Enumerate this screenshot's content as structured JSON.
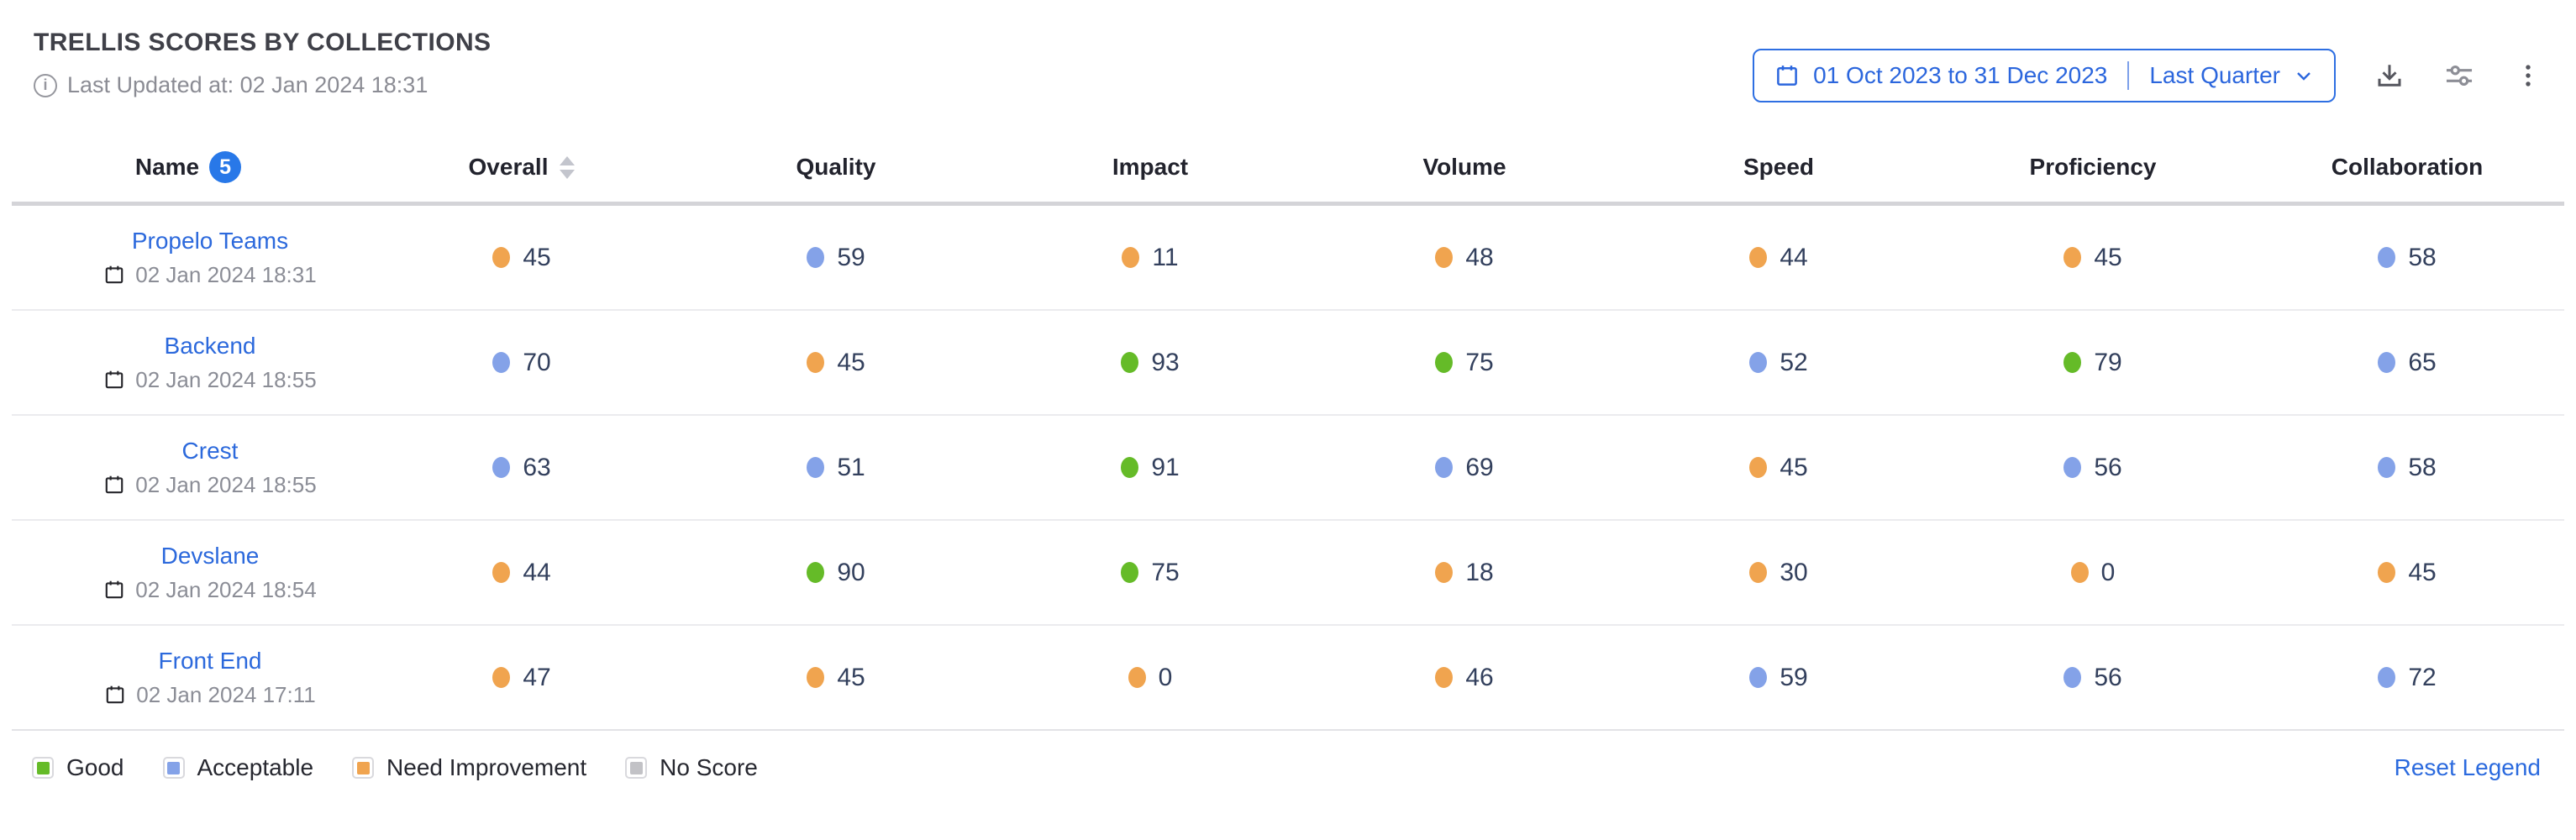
{
  "header": {
    "title": "TRELLIS SCORES BY COLLECTIONS",
    "last_updated": "Last Updated at: 02 Jan 2024 18:31"
  },
  "controls": {
    "date_range": "01 Oct 2023 to 31 Dec 2023",
    "date_preset": "Last Quarter",
    "icons": [
      "calendar-icon",
      "chevron-down-icon",
      "download-icon",
      "sliders-icon",
      "kebab-menu-icon"
    ]
  },
  "table": {
    "columns": [
      "Name",
      "Overall",
      "Quality",
      "Impact",
      "Volume",
      "Speed",
      "Proficiency",
      "Collaboration"
    ],
    "name_count_badge": "5",
    "rows": [
      {
        "name": "Propelo Teams",
        "updated": "02 Jan 2024 18:31",
        "scores": [
          {
            "value": 45,
            "status": "needImprovement"
          },
          {
            "value": 59,
            "status": "acceptable"
          },
          {
            "value": 11,
            "status": "needImprovement"
          },
          {
            "value": 48,
            "status": "needImprovement"
          },
          {
            "value": 44,
            "status": "needImprovement"
          },
          {
            "value": 45,
            "status": "needImprovement"
          },
          {
            "value": 58,
            "status": "acceptable"
          }
        ]
      },
      {
        "name": "Backend",
        "updated": "02 Jan 2024 18:55",
        "scores": [
          {
            "value": 70,
            "status": "acceptable"
          },
          {
            "value": 45,
            "status": "needImprovement"
          },
          {
            "value": 93,
            "status": "good"
          },
          {
            "value": 75,
            "status": "good"
          },
          {
            "value": 52,
            "status": "acceptable"
          },
          {
            "value": 79,
            "status": "good"
          },
          {
            "value": 65,
            "status": "acceptable"
          }
        ]
      },
      {
        "name": "Crest",
        "updated": "02 Jan 2024 18:55",
        "scores": [
          {
            "value": 63,
            "status": "acceptable"
          },
          {
            "value": 51,
            "status": "acceptable"
          },
          {
            "value": 91,
            "status": "good"
          },
          {
            "value": 69,
            "status": "acceptable"
          },
          {
            "value": 45,
            "status": "needImprovement"
          },
          {
            "value": 56,
            "status": "acceptable"
          },
          {
            "value": 58,
            "status": "acceptable"
          }
        ]
      },
      {
        "name": "Devslane",
        "updated": "02 Jan 2024 18:54",
        "scores": [
          {
            "value": 44,
            "status": "needImprovement"
          },
          {
            "value": 90,
            "status": "good"
          },
          {
            "value": 75,
            "status": "good"
          },
          {
            "value": 18,
            "status": "needImprovement"
          },
          {
            "value": 30,
            "status": "needImprovement"
          },
          {
            "value": 0,
            "status": "needImprovement"
          },
          {
            "value": 45,
            "status": "needImprovement"
          }
        ]
      },
      {
        "name": "Front End",
        "updated": "02 Jan 2024 17:11",
        "scores": [
          {
            "value": 47,
            "status": "needImprovement"
          },
          {
            "value": 45,
            "status": "needImprovement"
          },
          {
            "value": 0,
            "status": "needImprovement"
          },
          {
            "value": 46,
            "status": "needImprovement"
          },
          {
            "value": 59,
            "status": "acceptable"
          },
          {
            "value": 56,
            "status": "acceptable"
          },
          {
            "value": 72,
            "status": "acceptable"
          }
        ]
      }
    ]
  },
  "legend": {
    "items": [
      {
        "label": "Good",
        "status": "good"
      },
      {
        "label": "Acceptable",
        "status": "acceptable"
      },
      {
        "label": "Need Improvement",
        "status": "needImprovement"
      },
      {
        "label": "No Score",
        "status": "noScore"
      }
    ],
    "reset_label": "Reset Legend"
  },
  "colors": {
    "good": "#65bb28",
    "acceptable": "#84a2e8",
    "needImprovement": "#f0a44f",
    "noScore": "#c2c2c6",
    "accent_blue": "#2b66dd",
    "link_blue": "#2c69dc"
  }
}
